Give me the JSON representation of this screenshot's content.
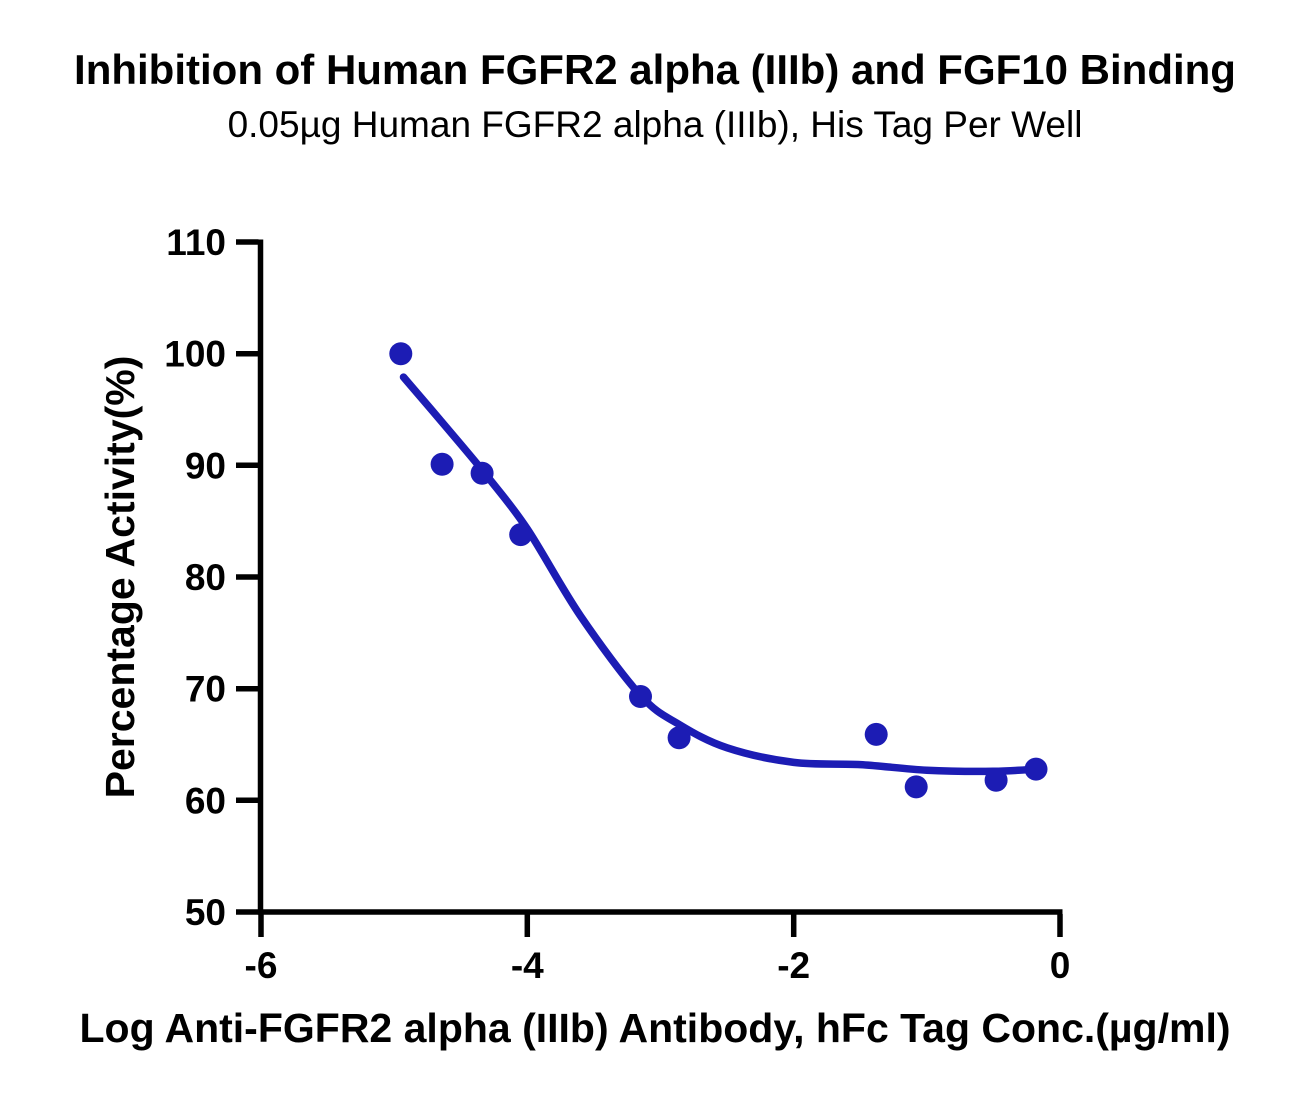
{
  "figure": {
    "background_color": "#ffffff",
    "text_color": "#000000"
  },
  "chart_data": {
    "type": "scatter",
    "title": "Inhibition of Human FGFR2 alpha (IIIb) and FGF10 Binding",
    "subtitle": "0.05µg Human FGFR2 alpha (IIIb), His Tag Per Well",
    "xlabel": "Log Anti-FGFR2 alpha (IIIb) Antibody, hFc Tag Conc.(µg/ml)",
    "ylabel": "Percentage Activity(%)",
    "xlim": [
      -6,
      0
    ],
    "ylim": [
      50,
      110
    ],
    "x_ticks": [
      -6,
      -4,
      -2,
      0
    ],
    "y_ticks": [
      110,
      100,
      90,
      80,
      70,
      60,
      50
    ],
    "grid": false,
    "legend": "none",
    "axis_color": "#000000",
    "marker_color": "#1C1CB4",
    "curve_color": "#1C1CB4",
    "points": [
      {
        "x": -4.95,
        "y": 100.0
      },
      {
        "x": -4.64,
        "y": 90.1
      },
      {
        "x": -4.34,
        "y": 89.3
      },
      {
        "x": -4.05,
        "y": 83.8
      },
      {
        "x": -3.15,
        "y": 69.3
      },
      {
        "x": -2.86,
        "y": 65.6
      },
      {
        "x": -1.38,
        "y": 65.9
      },
      {
        "x": -1.08,
        "y": 61.2
      },
      {
        "x": -0.48,
        "y": 61.8
      },
      {
        "x": -0.18,
        "y": 62.8
      }
    ],
    "fit_curve_points": [
      [
        -4.93,
        97.9
      ],
      [
        -4.6,
        93.3
      ],
      [
        -4.3,
        89.0
      ],
      [
        -4.0,
        84.3
      ],
      [
        -3.6,
        76.5
      ],
      [
        -3.15,
        69.4
      ],
      [
        -2.86,
        66.8
      ],
      [
        -2.5,
        64.7
      ],
      [
        -2.0,
        63.4
      ],
      [
        -1.5,
        63.2
      ],
      [
        -1.0,
        62.7
      ],
      [
        -0.5,
        62.6
      ],
      [
        -0.18,
        62.8
      ]
    ]
  }
}
